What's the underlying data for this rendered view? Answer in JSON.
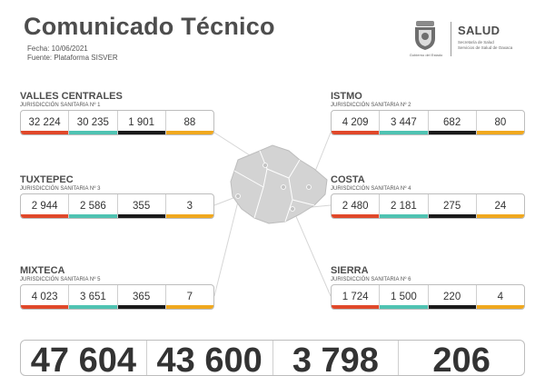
{
  "header": {
    "title": "Comunicado Técnico",
    "fecha": "Fecha: 10/06/2021",
    "fuente": "Fuente: Plataforma SISVER"
  },
  "logo": {
    "gobierno": "Gobierno del Estado",
    "salud": "SALUD",
    "salud_line1": "Secretaría de Salud",
    "salud_line2": "Servicios de Salud de Oaxaca"
  },
  "colors": {
    "red": "#e0482a",
    "teal": "#4fc3b2",
    "black": "#1a1a1a",
    "orange": "#f0a81e"
  },
  "regions": [
    {
      "name": "VALLES CENTRALES",
      "sub": "JURISDICCIÓN SANITARIA Nº 1",
      "values": [
        "32 224",
        "30 235",
        "1 901",
        "88"
      ]
    },
    {
      "name": "ISTMO",
      "sub": "JURISDICCIÓN SANITARIA Nº 2",
      "values": [
        "4 209",
        "3 447",
        "682",
        "80"
      ]
    },
    {
      "name": "TUXTEPEC",
      "sub": "JURISDICCIÓN SANITARIA Nº 3",
      "values": [
        "2 944",
        "2 586",
        "355",
        "3"
      ]
    },
    {
      "name": "COSTA",
      "sub": "JURISDICCIÓN SANITARIA Nº 4",
      "values": [
        "2 480",
        "2 181",
        "275",
        "24"
      ]
    },
    {
      "name": "MIXTECA",
      "sub": "JURISDICCIÓN SANITARIA Nº 5",
      "values": [
        "4 023",
        "3 651",
        "365",
        "7"
      ]
    },
    {
      "name": "SIERRA",
      "sub": "JURISDICCIÓN SANITARIA Nº 6",
      "values": [
        "1 724",
        "1 500",
        "220",
        "4"
      ]
    }
  ],
  "totals": [
    "47 604",
    "43 600",
    "3 798",
    "206"
  ]
}
